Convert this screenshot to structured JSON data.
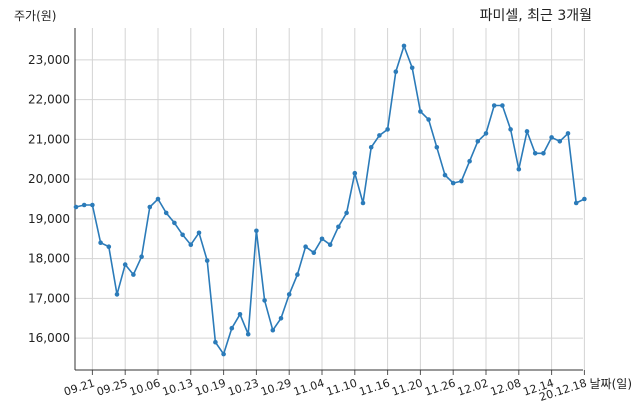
{
  "chart_data": {
    "type": "line",
    "title": "파미셀, 최근 3개월",
    "xlabel": "날짜(일)",
    "ylabel": "주가(원)",
    "ylim": [
      15200,
      23800
    ],
    "yticks": [
      16000,
      17000,
      18000,
      19000,
      20000,
      21000,
      22000,
      23000
    ],
    "ytick_labels": [
      "16,000",
      "17,000",
      "18,000",
      "19,000",
      "20,000",
      "21,000",
      "22,000",
      "23,000"
    ],
    "xtick_labels": [
      "09.21",
      "09.25",
      "10.06",
      "10.13",
      "10.19",
      "10.23",
      "10.29",
      "11.04",
      "11.10",
      "11.16",
      "11.20",
      "11.26",
      "12.02",
      "12.08",
      "12.14",
      "20.12.18"
    ],
    "xtick_index": [
      2,
      6,
      10,
      14,
      18,
      22,
      26,
      30,
      34,
      38,
      42,
      46,
      50,
      54,
      58,
      62
    ],
    "grid": true,
    "series": [
      {
        "color": "#2b7bb9",
        "values": [
          19300,
          19350,
          19350,
          18400,
          18300,
          17100,
          17850,
          17600,
          18050,
          19300,
          19500,
          19150,
          18900,
          18600,
          18350,
          18650,
          17950,
          15900,
          15600,
          16250,
          16600,
          16100,
          18700,
          16950,
          16200,
          16500,
          17100,
          17600,
          18300,
          18150,
          18500,
          18350,
          18800,
          19150,
          20150,
          19400,
          20800,
          21100,
          21250,
          22700,
          23350,
          22800,
          21700,
          21500,
          20800,
          20100,
          19900,
          19950,
          20450,
          20950,
          21150,
          21850,
          21850,
          21250,
          20250,
          21200,
          20650,
          20650,
          21050,
          20950,
          21150,
          19400,
          19500
        ]
      }
    ]
  }
}
